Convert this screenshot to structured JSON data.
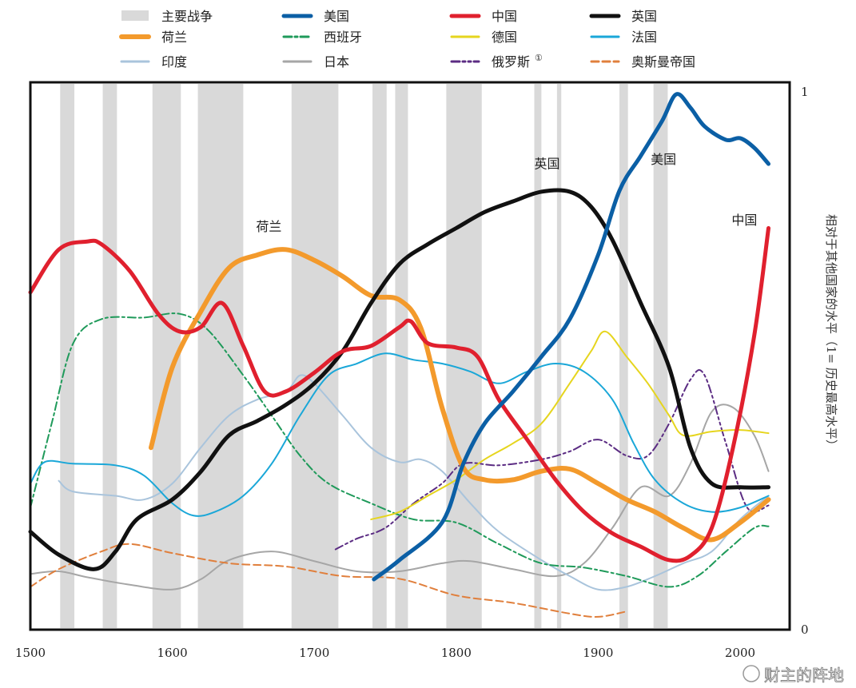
{
  "chart_data": {
    "type": "line",
    "title": "",
    "xlabel": "",
    "ylabel": "相对于其他国家的水平（1= 历史最高水平）",
    "xlim": [
      1500,
      2035
    ],
    "ylim": [
      0,
      1
    ],
    "x_ticks": [
      "1500",
      "1600",
      "1700",
      "1800",
      "1900",
      "2000"
    ],
    "y_ticks": [
      "1",
      "0"
    ],
    "legend_placement": "top",
    "war_label": "主要战争",
    "war_color": "#d9d9d9",
    "wars": [
      [
        1521,
        1531
      ],
      [
        1551,
        1561
      ],
      [
        1586,
        1606
      ],
      [
        1618,
        1650
      ],
      [
        1684,
        1717
      ],
      [
        1741,
        1751
      ],
      [
        1757,
        1766
      ],
      [
        1793,
        1818
      ],
      [
        1855,
        1860
      ],
      [
        1871,
        1874
      ],
      [
        1915,
        1921
      ],
      [
        1939,
        1949
      ]
    ],
    "annotations": [
      {
        "text": "荷兰",
        "x": 1668,
        "y": 0.745
      },
      {
        "text": "英国",
        "x": 1864,
        "y": 0.862
      },
      {
        "text": "美国",
        "x": 1946,
        "y": 0.87
      },
      {
        "text": "中国",
        "x": 2003,
        "y": 0.757
      }
    ],
    "series": [
      {
        "name": "美国",
        "color": "#0b5fa5",
        "width": 5,
        "dash": "",
        "points": [
          [
            1742,
            0.094
          ],
          [
            1760,
            0.13
          ],
          [
            1790,
            0.2
          ],
          [
            1805,
            0.31
          ],
          [
            1820,
            0.385
          ],
          [
            1840,
            0.445
          ],
          [
            1860,
            0.51
          ],
          [
            1880,
            0.58
          ],
          [
            1900,
            0.7
          ],
          [
            1915,
            0.82
          ],
          [
            1930,
            0.885
          ],
          [
            1945,
            0.95
          ],
          [
            1955,
            1.0
          ],
          [
            1965,
            0.975
          ],
          [
            1975,
            0.94
          ],
          [
            1990,
            0.915
          ],
          [
            2000,
            0.918
          ],
          [
            2010,
            0.9
          ],
          [
            2020,
            0.87
          ]
        ]
      },
      {
        "name": "中国",
        "color": "#e0202e",
        "width": 5,
        "dash": "",
        "points": [
          [
            1500,
            0.63
          ],
          [
            1520,
            0.71
          ],
          [
            1540,
            0.725
          ],
          [
            1550,
            0.72
          ],
          [
            1570,
            0.67
          ],
          [
            1590,
            0.59
          ],
          [
            1605,
            0.557
          ],
          [
            1620,
            0.565
          ],
          [
            1635,
            0.61
          ],
          [
            1650,
            0.53
          ],
          [
            1665,
            0.445
          ],
          [
            1680,
            0.445
          ],
          [
            1700,
            0.48
          ],
          [
            1720,
            0.52
          ],
          [
            1740,
            0.53
          ],
          [
            1760,
            0.565
          ],
          [
            1768,
            0.576
          ],
          [
            1780,
            0.535
          ],
          [
            1800,
            0.527
          ],
          [
            1815,
            0.51
          ],
          [
            1830,
            0.43
          ],
          [
            1850,
            0.355
          ],
          [
            1870,
            0.28
          ],
          [
            1890,
            0.22
          ],
          [
            1910,
            0.18
          ],
          [
            1930,
            0.155
          ],
          [
            1950,
            0.13
          ],
          [
            1965,
            0.138
          ],
          [
            1980,
            0.19
          ],
          [
            1995,
            0.34
          ],
          [
            2010,
            0.55
          ],
          [
            2020,
            0.75
          ]
        ]
      },
      {
        "name": "英国",
        "color": "#111111",
        "width": 5,
        "dash": "",
        "points": [
          [
            1500,
            0.183
          ],
          [
            1520,
            0.14
          ],
          [
            1545,
            0.113
          ],
          [
            1560,
            0.146
          ],
          [
            1575,
            0.206
          ],
          [
            1600,
            0.243
          ],
          [
            1620,
            0.295
          ],
          [
            1640,
            0.363
          ],
          [
            1660,
            0.39
          ],
          [
            1680,
            0.42
          ],
          [
            1700,
            0.46
          ],
          [
            1720,
            0.52
          ],
          [
            1740,
            0.61
          ],
          [
            1760,
            0.683
          ],
          [
            1780,
            0.72
          ],
          [
            1800,
            0.75
          ],
          [
            1820,
            0.78
          ],
          [
            1840,
            0.8
          ],
          [
            1860,
            0.818
          ],
          [
            1880,
            0.818
          ],
          [
            1895,
            0.79
          ],
          [
            1910,
            0.728
          ],
          [
            1930,
            0.61
          ],
          [
            1950,
            0.49
          ],
          [
            1965,
            0.34
          ],
          [
            1980,
            0.273
          ],
          [
            2000,
            0.266
          ],
          [
            2020,
            0.266
          ]
        ]
      },
      {
        "name": "荷兰",
        "color": "#f39a2c",
        "width": 6,
        "dash": "",
        "points": [
          [
            1585,
            0.34
          ],
          [
            1600,
            0.49
          ],
          [
            1620,
            0.594
          ],
          [
            1640,
            0.676
          ],
          [
            1660,
            0.7
          ],
          [
            1680,
            0.71
          ],
          [
            1700,
            0.69
          ],
          [
            1720,
            0.66
          ],
          [
            1740,
            0.624
          ],
          [
            1760,
            0.616
          ],
          [
            1775,
            0.564
          ],
          [
            1790,
            0.415
          ],
          [
            1805,
            0.303
          ],
          [
            1820,
            0.28
          ],
          [
            1840,
            0.28
          ],
          [
            1860,
            0.296
          ],
          [
            1880,
            0.3
          ],
          [
            1900,
            0.273
          ],
          [
            1920,
            0.243
          ],
          [
            1940,
            0.22
          ],
          [
            1960,
            0.19
          ],
          [
            1980,
            0.168
          ],
          [
            2000,
            0.2
          ],
          [
            2020,
            0.243
          ]
        ]
      },
      {
        "name": "西班牙",
        "color": "#1f9a5a",
        "width": 2,
        "dash": "10 4 3 4",
        "points": [
          [
            1500,
            0.228
          ],
          [
            1515,
            0.385
          ],
          [
            1530,
            0.534
          ],
          [
            1550,
            0.58
          ],
          [
            1580,
            0.583
          ],
          [
            1605,
            0.59
          ],
          [
            1625,
            0.56
          ],
          [
            1650,
            0.475
          ],
          [
            1670,
            0.4
          ],
          [
            1690,
            0.325
          ],
          [
            1710,
            0.273
          ],
          [
            1740,
            0.236
          ],
          [
            1770,
            0.206
          ],
          [
            1800,
            0.2
          ],
          [
            1830,
            0.16
          ],
          [
            1860,
            0.124
          ],
          [
            1890,
            0.116
          ],
          [
            1920,
            0.1
          ],
          [
            1950,
            0.08
          ],
          [
            1970,
            0.1
          ],
          [
            1990,
            0.146
          ],
          [
            2010,
            0.19
          ],
          [
            2020,
            0.193
          ]
        ]
      },
      {
        "name": "德国",
        "color": "#e6d51e",
        "width": 2,
        "dash": "",
        "points": [
          [
            1740,
            0.206
          ],
          [
            1760,
            0.22
          ],
          [
            1780,
            0.25
          ],
          [
            1800,
            0.28
          ],
          [
            1820,
            0.318
          ],
          [
            1840,
            0.348
          ],
          [
            1860,
            0.385
          ],
          [
            1880,
            0.46
          ],
          [
            1895,
            0.52
          ],
          [
            1905,
            0.557
          ],
          [
            1920,
            0.51
          ],
          [
            1935,
            0.46
          ],
          [
            1950,
            0.4
          ],
          [
            1960,
            0.363
          ],
          [
            1980,
            0.37
          ],
          [
            2000,
            0.373
          ],
          [
            2020,
            0.367
          ]
        ]
      },
      {
        "name": "法国",
        "color": "#1aa7d8",
        "width": 2,
        "dash": "",
        "points": [
          [
            1500,
            0.273
          ],
          [
            1510,
            0.313
          ],
          [
            1530,
            0.31
          ],
          [
            1560,
            0.307
          ],
          [
            1580,
            0.288
          ],
          [
            1600,
            0.236
          ],
          [
            1615,
            0.213
          ],
          [
            1630,
            0.22
          ],
          [
            1650,
            0.25
          ],
          [
            1670,
            0.31
          ],
          [
            1690,
            0.4
          ],
          [
            1710,
            0.475
          ],
          [
            1730,
            0.497
          ],
          [
            1750,
            0.516
          ],
          [
            1770,
            0.504
          ],
          [
            1790,
            0.497
          ],
          [
            1810,
            0.482
          ],
          [
            1830,
            0.46
          ],
          [
            1850,
            0.482
          ],
          [
            1870,
            0.497
          ],
          [
            1890,
            0.482
          ],
          [
            1910,
            0.43
          ],
          [
            1925,
            0.348
          ],
          [
            1940,
            0.28
          ],
          [
            1960,
            0.236
          ],
          [
            1980,
            0.22
          ],
          [
            2000,
            0.228
          ],
          [
            2020,
            0.25
          ]
        ]
      },
      {
        "name": "印度",
        "color": "#a9c4dc",
        "width": 2,
        "dash": "",
        "points": [
          [
            1520,
            0.278
          ],
          [
            1530,
            0.258
          ],
          [
            1560,
            0.25
          ],
          [
            1580,
            0.243
          ],
          [
            1600,
            0.273
          ],
          [
            1620,
            0.34
          ],
          [
            1640,
            0.4
          ],
          [
            1660,
            0.43
          ],
          [
            1680,
            0.445
          ],
          [
            1690,
            0.475
          ],
          [
            1700,
            0.46
          ],
          [
            1720,
            0.4
          ],
          [
            1740,
            0.34
          ],
          [
            1760,
            0.313
          ],
          [
            1775,
            0.318
          ],
          [
            1790,
            0.296
          ],
          [
            1810,
            0.236
          ],
          [
            1830,
            0.183
          ],
          [
            1860,
            0.13
          ],
          [
            1880,
            0.1
          ],
          [
            1900,
            0.075
          ],
          [
            1920,
            0.08
          ],
          [
            1940,
            0.1
          ],
          [
            1960,
            0.124
          ],
          [
            1980,
            0.146
          ],
          [
            2000,
            0.206
          ],
          [
            2020,
            0.25
          ]
        ]
      },
      {
        "name": "日本",
        "color": "#a6a6a6",
        "width": 2,
        "dash": "",
        "points": [
          [
            1500,
            0.104
          ],
          [
            1520,
            0.109
          ],
          [
            1540,
            0.098
          ],
          [
            1570,
            0.084
          ],
          [
            1600,
            0.075
          ],
          [
            1620,
            0.094
          ],
          [
            1640,
            0.13
          ],
          [
            1670,
            0.146
          ],
          [
            1700,
            0.128
          ],
          [
            1730,
            0.109
          ],
          [
            1760,
            0.109
          ],
          [
            1790,
            0.124
          ],
          [
            1810,
            0.128
          ],
          [
            1840,
            0.113
          ],
          [
            1870,
            0.1
          ],
          [
            1890,
            0.124
          ],
          [
            1910,
            0.19
          ],
          [
            1930,
            0.266
          ],
          [
            1950,
            0.25
          ],
          [
            1965,
            0.31
          ],
          [
            1980,
            0.407
          ],
          [
            1995,
            0.415
          ],
          [
            2010,
            0.363
          ],
          [
            2020,
            0.296
          ]
        ]
      },
      {
        "name": "俄罗斯",
        "sup": "①",
        "color": "#5b2c83",
        "width": 2,
        "dash": "10 4 3 4 3 4",
        "points": [
          [
            1715,
            0.15
          ],
          [
            1730,
            0.17
          ],
          [
            1750,
            0.19
          ],
          [
            1770,
            0.236
          ],
          [
            1790,
            0.273
          ],
          [
            1805,
            0.31
          ],
          [
            1830,
            0.307
          ],
          [
            1860,
            0.318
          ],
          [
            1880,
            0.333
          ],
          [
            1900,
            0.355
          ],
          [
            1920,
            0.325
          ],
          [
            1935,
            0.325
          ],
          [
            1950,
            0.385
          ],
          [
            1965,
            0.467
          ],
          [
            1975,
            0.475
          ],
          [
            1990,
            0.348
          ],
          [
            2005,
            0.228
          ],
          [
            2020,
            0.232
          ]
        ]
      },
      {
        "name": "奥斯曼帝国",
        "color": "#e07f3c",
        "width": 2,
        "dash": "9 5",
        "points": [
          [
            1500,
            0.08
          ],
          [
            1520,
            0.113
          ],
          [
            1550,
            0.146
          ],
          [
            1570,
            0.16
          ],
          [
            1600,
            0.143
          ],
          [
            1640,
            0.124
          ],
          [
            1680,
            0.118
          ],
          [
            1720,
            0.1
          ],
          [
            1760,
            0.095
          ],
          [
            1800,
            0.064
          ],
          [
            1840,
            0.05
          ],
          [
            1880,
            0.03
          ],
          [
            1900,
            0.024
          ],
          [
            1920,
            0.034
          ]
        ]
      }
    ],
    "legend_order": [
      "war",
      "美国",
      "中国",
      "英国",
      "荷兰",
      "西班牙",
      "德国",
      "法国",
      "印度",
      "日本",
      "俄罗斯",
      "奥斯曼帝国"
    ]
  },
  "watermark": "财主的阵地"
}
